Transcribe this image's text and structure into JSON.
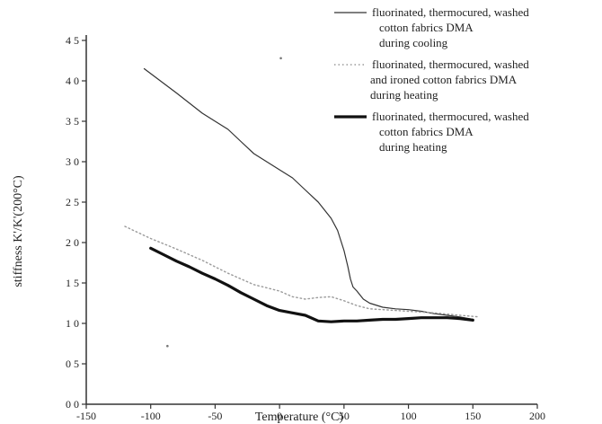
{
  "chart_data": {
    "type": "line",
    "title": "",
    "xlabel": "Temperature (°C)",
    "ylabel": "stiffness K'/K'(200°C)",
    "xlim": [
      -150,
      200
    ],
    "ylim": [
      0.0,
      4.5
    ],
    "x_ticks": [
      "-150",
      "-100",
      "-50",
      "0",
      "50",
      "100",
      "150",
      "200"
    ],
    "y_ticks": [
      "0 0",
      "0 5",
      "1 0",
      "1 5",
      "2 0",
      "2 5",
      "3 0",
      "3 5",
      "4 0",
      "4 5"
    ],
    "y_tick_values": [
      0.0,
      0.5,
      1.0,
      1.5,
      2.0,
      2.5,
      3.0,
      3.5,
      4.0,
      4.5
    ],
    "x_tick_values": [
      -150,
      -100,
      -50,
      0,
      50,
      100,
      150,
      200
    ],
    "grid": false,
    "legend_position": "top-right",
    "series": [
      {
        "name_lines": [
          "fluorinated, thermocured, washed",
          "cotton fabrics   DMA",
          "during cooling"
        ],
        "style": "thin-solid",
        "color": "#333333",
        "x": [
          -105,
          -80,
          -60,
          -50,
          -40,
          -30,
          -20,
          -10,
          0,
          10,
          20,
          30,
          40,
          45,
          50,
          53,
          55,
          57,
          60,
          65,
          70,
          80,
          90,
          100,
          110,
          120,
          130,
          140,
          150
        ],
        "y": [
          4.15,
          3.85,
          3.6,
          3.5,
          3.4,
          3.25,
          3.1,
          3.0,
          2.9,
          2.8,
          2.65,
          2.5,
          2.3,
          2.15,
          1.9,
          1.7,
          1.55,
          1.45,
          1.4,
          1.3,
          1.25,
          1.2,
          1.18,
          1.17,
          1.15,
          1.12,
          1.1,
          1.08,
          1.05
        ]
      },
      {
        "name_lines": [
          "fluorinated, thermocured, washed",
          "and ironed cotton fabrics   DMA",
          "during heating"
        ],
        "style": "dotted",
        "color": "#9a9a9a",
        "x": [
          -120,
          -100,
          -80,
          -60,
          -40,
          -20,
          0,
          10,
          20,
          30,
          40,
          50,
          60,
          70,
          80,
          90,
          100,
          120,
          140,
          155
        ],
        "y": [
          2.2,
          2.05,
          1.92,
          1.78,
          1.62,
          1.48,
          1.4,
          1.33,
          1.3,
          1.32,
          1.33,
          1.28,
          1.22,
          1.18,
          1.17,
          1.16,
          1.15,
          1.13,
          1.1,
          1.08
        ]
      },
      {
        "name_lines": [
          "fluorinated, thermocured, washed",
          "cotton fabrics   DMA",
          "during heating"
        ],
        "style": "thick-solid",
        "color": "#111111",
        "x": [
          -100,
          -90,
          -80,
          -70,
          -60,
          -50,
          -40,
          -30,
          -20,
          -10,
          0,
          10,
          20,
          30,
          40,
          50,
          60,
          70,
          80,
          90,
          100,
          110,
          120,
          130,
          140,
          150
        ],
        "y": [
          1.93,
          1.85,
          1.77,
          1.7,
          1.62,
          1.55,
          1.47,
          1.38,
          1.3,
          1.22,
          1.16,
          1.13,
          1.1,
          1.03,
          1.02,
          1.03,
          1.03,
          1.04,
          1.05,
          1.05,
          1.06,
          1.07,
          1.07,
          1.07,
          1.06,
          1.04
        ]
      }
    ],
    "stray_points": [
      {
        "x": 1,
        "y": 4.28
      },
      {
        "x": -87,
        "y": 0.72
      }
    ]
  }
}
